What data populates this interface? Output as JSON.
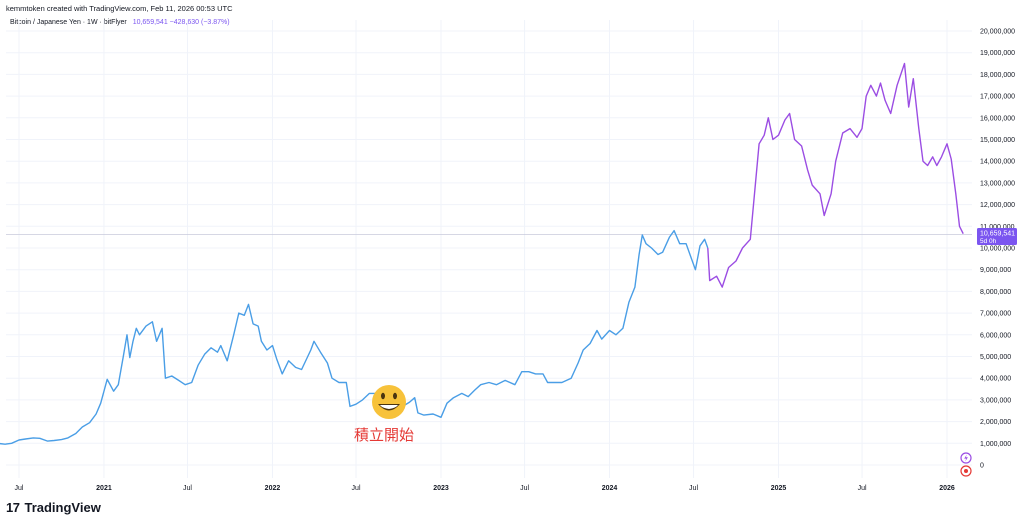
{
  "header": {
    "attribution": "kemmtoken created with TradingView.com, Feb 11, 2026 00:53 UTC"
  },
  "legend": {
    "symbol": "Bitcoin / Japanese Yen · 1W · bitFlyer",
    "values": "10,659,541  −428,630 (−3.87%)"
  },
  "price_label": {
    "value": "10,659,541",
    "countdown": "5d 0h"
  },
  "annotation": {
    "emoji": "😃",
    "text": "積立開始"
  },
  "footer": {
    "logo": "17",
    "brand": "TradingView"
  },
  "colors": {
    "line_before": "#4a9ee6",
    "line_after": "#9b4de3",
    "price_tag": "#7b55f0",
    "annotation_text": "#e53935"
  },
  "chart_data": {
    "type": "line",
    "title": "Bitcoin / Japanese Yen · 1W · bitFlyer",
    "y_scale": "linear",
    "ylim": [
      0,
      20000000
    ],
    "y_ticks": [
      "0",
      "1,000,000",
      "2,000,000",
      "3,000,000",
      "4,000,000",
      "5,000,000",
      "6,000,000",
      "7,000,000",
      "8,000,000",
      "9,000,000",
      "10,000,000",
      "11,000,000",
      "12,000,000",
      "13,000,000",
      "14,000,000",
      "15,000,000",
      "16,000,000",
      "17,000,000",
      "18,000,000",
      "19,000,000",
      "20,000,000"
    ],
    "x_ticks": [
      {
        "date": "2020-07-01",
        "label": "Jul"
      },
      {
        "date": "2021-01-01",
        "label": "2021"
      },
      {
        "date": "2021-07-01",
        "label": "Jul"
      },
      {
        "date": "2022-01-01",
        "label": "2022"
      },
      {
        "date": "2022-07-01",
        "label": "Jul"
      },
      {
        "date": "2023-01-01",
        "label": "2023"
      },
      {
        "date": "2023-07-01",
        "label": "Jul"
      },
      {
        "date": "2024-01-01",
        "label": "2024"
      },
      {
        "date": "2024-07-01",
        "label": "Jul"
      },
      {
        "date": "2025-01-01",
        "label": "2025"
      },
      {
        "date": "2025-07-01",
        "label": "Jul"
      },
      {
        "date": "2026-01-01",
        "label": "2026"
      }
    ],
    "color_change_date": "2024-08-01",
    "series": [
      {
        "points": [
          [
            "2020-05-15",
            1000000
          ],
          [
            "2020-06-01",
            960000
          ],
          [
            "2020-06-15",
            1000000
          ],
          [
            "2020-07-01",
            1150000
          ],
          [
            "2020-07-15",
            1200000
          ],
          [
            "2020-08-01",
            1250000
          ],
          [
            "2020-08-15",
            1230000
          ],
          [
            "2020-09-01",
            1100000
          ],
          [
            "2020-09-15",
            1130000
          ],
          [
            "2020-10-01",
            1170000
          ],
          [
            "2020-10-15",
            1250000
          ],
          [
            "2020-11-01",
            1450000
          ],
          [
            "2020-11-15",
            1750000
          ],
          [
            "2020-12-01",
            1950000
          ],
          [
            "2020-12-15",
            2350000
          ],
          [
            "2020-12-25",
            2850000
          ],
          [
            "2021-01-08",
            3950000
          ],
          [
            "2021-01-22",
            3400000
          ],
          [
            "2021-02-01",
            3700000
          ],
          [
            "2021-02-12",
            5000000
          ],
          [
            "2021-02-20",
            6000000
          ],
          [
            "2021-02-26",
            4950000
          ],
          [
            "2021-03-05",
            5700000
          ],
          [
            "2021-03-12",
            6300000
          ],
          [
            "2021-03-19",
            6000000
          ],
          [
            "2021-04-02",
            6400000
          ],
          [
            "2021-04-16",
            6600000
          ],
          [
            "2021-04-25",
            5700000
          ],
          [
            "2021-05-07",
            6300000
          ],
          [
            "2021-05-14",
            4000000
          ],
          [
            "2021-05-28",
            4100000
          ],
          [
            "2021-06-12",
            3900000
          ],
          [
            "2021-06-26",
            3700000
          ],
          [
            "2021-07-10",
            3800000
          ],
          [
            "2021-07-24",
            4600000
          ],
          [
            "2021-08-07",
            5100000
          ],
          [
            "2021-08-21",
            5400000
          ],
          [
            "2021-09-04",
            5200000
          ],
          [
            "2021-09-11",
            5500000
          ],
          [
            "2021-09-25",
            4800000
          ],
          [
            "2021-10-09",
            6000000
          ],
          [
            "2021-10-20",
            7000000
          ],
          [
            "2021-11-01",
            6900000
          ],
          [
            "2021-11-10",
            7400000
          ],
          [
            "2021-11-20",
            6500000
          ],
          [
            "2021-12-01",
            6400000
          ],
          [
            "2021-12-08",
            5700000
          ],
          [
            "2021-12-20",
            5300000
          ],
          [
            "2022-01-01",
            5500000
          ],
          [
            "2022-01-10",
            4900000
          ],
          [
            "2022-01-22",
            4200000
          ],
          [
            "2022-02-05",
            4800000
          ],
          [
            "2022-02-20",
            4500000
          ],
          [
            "2022-03-05",
            4400000
          ],
          [
            "2022-03-25",
            5300000
          ],
          [
            "2022-04-01",
            5700000
          ],
          [
            "2022-04-15",
            5200000
          ],
          [
            "2022-04-30",
            4700000
          ],
          [
            "2022-05-10",
            4000000
          ],
          [
            "2022-05-25",
            3800000
          ],
          [
            "2022-06-10",
            3800000
          ],
          [
            "2022-06-18",
            2700000
          ],
          [
            "2022-07-01",
            2800000
          ],
          [
            "2022-07-15",
            3000000
          ],
          [
            "2022-07-30",
            3300000
          ],
          [
            "2022-08-15",
            3300000
          ],
          [
            "2022-08-30",
            2700000
          ],
          [
            "2022-09-12",
            2900000
          ],
          [
            "2022-09-26",
            2900000
          ],
          [
            "2022-10-10",
            2700000
          ],
          [
            "2022-10-25",
            2900000
          ],
          [
            "2022-11-05",
            3100000
          ],
          [
            "2022-11-12",
            2400000
          ],
          [
            "2022-11-25",
            2300000
          ],
          [
            "2022-12-15",
            2350000
          ],
          [
            "2023-01-01",
            2200000
          ],
          [
            "2023-01-14",
            2850000
          ],
          [
            "2023-01-28",
            3100000
          ],
          [
            "2023-02-15",
            3300000
          ],
          [
            "2023-03-01",
            3150000
          ],
          [
            "2023-03-15",
            3450000
          ],
          [
            "2023-03-28",
            3700000
          ],
          [
            "2023-04-15",
            3800000
          ],
          [
            "2023-05-01",
            3700000
          ],
          [
            "2023-05-20",
            3900000
          ],
          [
            "2023-06-10",
            3700000
          ],
          [
            "2023-06-25",
            4300000
          ],
          [
            "2023-07-10",
            4300000
          ],
          [
            "2023-07-25",
            4200000
          ],
          [
            "2023-08-10",
            4200000
          ],
          [
            "2023-08-20",
            3800000
          ],
          [
            "2023-09-05",
            3800000
          ],
          [
            "2023-09-20",
            3800000
          ],
          [
            "2023-10-10",
            4000000
          ],
          [
            "2023-10-25",
            4700000
          ],
          [
            "2023-11-05",
            5300000
          ],
          [
            "2023-11-20",
            5600000
          ],
          [
            "2023-12-05",
            6200000
          ],
          [
            "2023-12-15",
            5800000
          ],
          [
            "2024-01-01",
            6200000
          ],
          [
            "2024-01-15",
            6000000
          ],
          [
            "2024-01-30",
            6300000
          ],
          [
            "2024-02-12",
            7500000
          ],
          [
            "2024-02-25",
            8200000
          ],
          [
            "2024-03-05",
            9700000
          ],
          [
            "2024-03-12",
            10600000
          ],
          [
            "2024-03-20",
            10200000
          ],
          [
            "2024-04-01",
            10000000
          ],
          [
            "2024-04-15",
            9700000
          ],
          [
            "2024-04-25",
            9800000
          ],
          [
            "2024-05-10",
            10500000
          ],
          [
            "2024-05-20",
            10800000
          ],
          [
            "2024-06-01",
            10200000
          ],
          [
            "2024-06-15",
            10200000
          ],
          [
            "2024-07-05",
            9000000
          ],
          [
            "2024-07-15",
            10100000
          ],
          [
            "2024-07-25",
            10400000
          ],
          [
            "2024-08-01",
            10000000
          ]
        ]
      },
      {
        "points": [
          [
            "2024-08-01",
            10000000
          ],
          [
            "2024-08-05",
            8500000
          ],
          [
            "2024-08-20",
            8700000
          ],
          [
            "2024-09-01",
            8200000
          ],
          [
            "2024-09-15",
            9100000
          ],
          [
            "2024-10-01",
            9400000
          ],
          [
            "2024-10-15",
            10000000
          ],
          [
            "2024-11-01",
            10400000
          ],
          [
            "2024-11-10",
            12500000
          ],
          [
            "2024-11-20",
            14800000
          ],
          [
            "2024-12-01",
            15200000
          ],
          [
            "2024-12-10",
            16000000
          ],
          [
            "2024-12-20",
            15000000
          ],
          [
            "2025-01-01",
            15200000
          ],
          [
            "2025-01-15",
            15900000
          ],
          [
            "2025-01-25",
            16200000
          ],
          [
            "2025-02-05",
            15000000
          ],
          [
            "2025-02-20",
            14700000
          ],
          [
            "2025-03-05",
            13600000
          ],
          [
            "2025-03-15",
            12900000
          ],
          [
            "2025-04-01",
            12500000
          ],
          [
            "2025-04-10",
            11500000
          ],
          [
            "2025-04-25",
            12500000
          ],
          [
            "2025-05-05",
            14000000
          ],
          [
            "2025-05-20",
            15300000
          ],
          [
            "2025-06-05",
            15500000
          ],
          [
            "2025-06-20",
            15100000
          ],
          [
            "2025-07-01",
            15500000
          ],
          [
            "2025-07-10",
            17000000
          ],
          [
            "2025-07-20",
            17500000
          ],
          [
            "2025-08-01",
            17000000
          ],
          [
            "2025-08-10",
            17600000
          ],
          [
            "2025-08-20",
            16800000
          ],
          [
            "2025-09-01",
            16200000
          ],
          [
            "2025-09-15",
            17500000
          ],
          [
            "2025-10-01",
            18500000
          ],
          [
            "2025-10-10",
            16500000
          ],
          [
            "2025-10-20",
            17800000
          ],
          [
            "2025-11-01",
            15500000
          ],
          [
            "2025-11-10",
            14000000
          ],
          [
            "2025-11-20",
            13800000
          ],
          [
            "2025-12-01",
            14200000
          ],
          [
            "2025-12-10",
            13800000
          ],
          [
            "2025-12-20",
            14200000
          ],
          [
            "2026-01-01",
            14800000
          ],
          [
            "2026-01-10",
            14100000
          ],
          [
            "2026-01-20",
            12500000
          ],
          [
            "2026-01-28",
            11000000
          ],
          [
            "2026-02-05",
            10659541
          ]
        ]
      }
    ]
  }
}
